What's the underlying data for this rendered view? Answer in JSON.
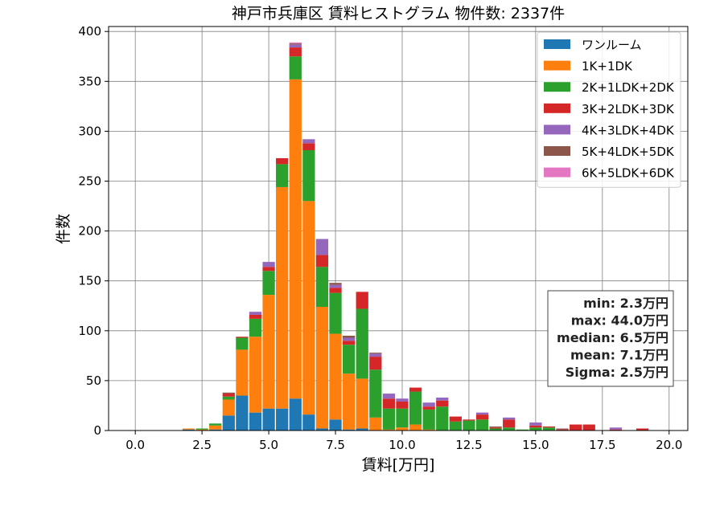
{
  "chart_data": {
    "type": "bar",
    "stacked": true,
    "title": "神戸市兵庫区 賃料ヒストグラム  物件数: 2337件",
    "xlabel": "賃料[万円]",
    "ylabel": "件数",
    "xlim": [
      -1.0,
      20.7
    ],
    "ylim": [
      0,
      405
    ],
    "xticks": [
      0.0,
      2.5,
      5.0,
      7.5,
      10.0,
      12.5,
      15.0,
      17.5,
      20.0
    ],
    "xtick_labels": [
      "0.0",
      "2.5",
      "5.0",
      "7.5",
      "10.0",
      "12.5",
      "15.0",
      "17.5",
      "20.0"
    ],
    "yticks": [
      0,
      50,
      100,
      150,
      200,
      250,
      300,
      350,
      400
    ],
    "ytick_labels": [
      "0",
      "50",
      "100",
      "150",
      "200",
      "250",
      "300",
      "350",
      "400"
    ],
    "grid": true,
    "legend_position": "top-right",
    "bin_width": 0.5,
    "bin_centers": [
      2.0,
      2.5,
      3.0,
      3.5,
      4.0,
      4.5,
      5.0,
      5.5,
      6.0,
      6.5,
      7.0,
      7.5,
      8.0,
      8.5,
      9.0,
      9.5,
      10.0,
      10.5,
      11.0,
      11.5,
      12.0,
      12.5,
      13.0,
      13.5,
      14.0,
      14.5,
      15.0,
      15.5,
      16.0,
      16.5,
      17.0,
      17.5,
      18.0,
      18.5,
      19.0
    ],
    "series": [
      {
        "name": "ワンルーム",
        "color": "#1f77b4",
        "values": [
          1,
          0,
          1,
          15,
          35,
          18,
          22,
          22,
          32,
          16,
          2,
          11,
          1,
          2,
          0,
          0,
          0,
          0,
          0,
          0,
          0,
          0,
          0,
          0,
          0,
          0,
          0,
          0,
          0,
          0,
          0,
          0,
          0,
          0,
          0
        ]
      },
      {
        "name": "1K+1DK",
        "color": "#ff7f0e",
        "values": [
          1,
          1,
          4,
          16,
          46,
          76,
          114,
          222,
          320,
          214,
          122,
          86,
          56,
          50,
          13,
          1,
          3,
          6,
          1,
          0,
          0,
          0,
          0,
          0,
          0,
          0,
          0,
          0,
          0,
          0,
          0,
          0,
          0,
          0,
          0
        ]
      },
      {
        "name": "2K+1LDK+2DK",
        "color": "#2ca02c",
        "values": [
          0,
          1,
          2,
          3,
          12,
          18,
          24,
          23,
          23,
          51,
          40,
          41,
          29,
          70,
          48,
          21,
          19,
          33,
          20,
          24,
          9,
          10,
          11,
          2,
          3,
          1,
          3,
          3,
          0,
          0,
          0,
          0,
          0,
          0,
          0
        ]
      },
      {
        "name": "3K+2LDK+3DK",
        "color": "#d62728",
        "values": [
          0,
          0,
          0,
          3,
          1,
          4,
          4,
          6,
          9,
          7,
          12,
          5,
          4,
          17,
          13,
          10,
          7,
          4,
          3,
          6,
          5,
          1,
          5,
          1,
          8,
          0,
          2,
          1,
          1,
          6,
          6,
          0,
          1,
          0,
          2
        ]
      },
      {
        "name": "4K+3LDK+4DK",
        "color": "#9467bd",
        "values": [
          0,
          0,
          0,
          0,
          0,
          3,
          5,
          0,
          3,
          4,
          16,
          3,
          3,
          0,
          3,
          5,
          3,
          0,
          4,
          3,
          0,
          0,
          2,
          0,
          2,
          0,
          3,
          0,
          0,
          0,
          0,
          0,
          2,
          0,
          0
        ]
      },
      {
        "name": "5K+4LDK+5DK",
        "color": "#8c564b",
        "values": [
          0,
          0,
          0,
          1,
          0,
          0,
          0,
          0,
          1,
          0,
          0,
          2,
          2,
          0,
          1,
          0,
          0,
          0,
          0,
          0,
          0,
          0,
          0,
          1,
          0,
          0,
          0,
          0,
          1,
          0,
          0,
          0,
          0,
          0,
          0
        ]
      },
      {
        "name": "6K+5LDK+6DK",
        "color": "#e377c2",
        "values": [
          0,
          0,
          0,
          0,
          0,
          0,
          0,
          0,
          1,
          0,
          0,
          0,
          0,
          0,
          0,
          0,
          0,
          0,
          0,
          0,
          0,
          0,
          0,
          0,
          0,
          0,
          0,
          0,
          0,
          0,
          0,
          0,
          0,
          0,
          0
        ]
      }
    ],
    "stats_box": {
      "position": "right",
      "lines": [
        "min: 2.3万円",
        "max: 44.0万円",
        "median: 6.5万円",
        "mean: 7.1万円",
        "Sigma: 2.5万円"
      ]
    }
  }
}
